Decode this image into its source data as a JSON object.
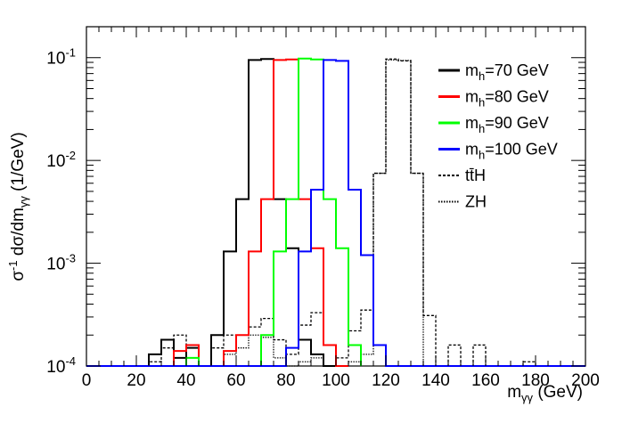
{
  "chart_data": {
    "type": "histogram-step",
    "title": "",
    "xlabel": "m",
    "xlabel_sub": "γγ",
    "xlabel_unit": " (GeV)",
    "ylabel_parts": {
      "sigma": "σ",
      "exp": "-1",
      "mid": " dσ/dm",
      "sub": "γγ",
      "unit": " (1/GeV)"
    },
    "xlim": [
      0,
      200
    ],
    "ylim": [
      0.0001,
      0.2
    ],
    "yscale": "log",
    "bin_width": 5,
    "x_ticks": [
      "0",
      "20",
      "40",
      "60",
      "80",
      "100",
      "120",
      "140",
      "160",
      "180",
      "200"
    ],
    "x_tick_values": [
      0,
      20,
      40,
      60,
      80,
      100,
      120,
      140,
      160,
      180,
      200
    ],
    "y_ticks": [
      {
        "value": 0.1,
        "base": "10",
        "exp": "-1"
      },
      {
        "value": 0.01,
        "base": "10",
        "exp": "-2"
      },
      {
        "value": 0.001,
        "base": "10",
        "exp": "-3"
      },
      {
        "value": 0.0001,
        "base": "10",
        "exp": "-4"
      }
    ],
    "series": [
      {
        "name": "mh70",
        "label_main": "m",
        "label_sub": "h",
        "label_rest": "=70 GeV",
        "color": "#000000",
        "style": "solid",
        "bins": [
          [
            20,
            25,
            0.0001
          ],
          [
            25,
            30,
            0.00013
          ],
          [
            30,
            35,
            0.00018
          ],
          [
            35,
            40,
            0.00012
          ],
          [
            40,
            45,
            0.00015
          ],
          [
            45,
            50,
            0.0001
          ],
          [
            50,
            55,
            0.0002
          ],
          [
            55,
            60,
            0.0013
          ],
          [
            60,
            65,
            0.0042
          ],
          [
            65,
            70,
            0.095
          ],
          [
            70,
            75,
            0.097
          ],
          [
            75,
            80,
            0.0042
          ],
          [
            80,
            85,
            0.0014
          ],
          [
            85,
            90,
            0.00018
          ],
          [
            90,
            95,
            0.00013
          ],
          [
            95,
            100,
            0.0001
          ]
        ]
      },
      {
        "name": "mh80",
        "label_main": "m",
        "label_sub": "h",
        "label_rest": "=80 GeV",
        "color": "#ff0000",
        "style": "solid",
        "bins": [
          [
            35,
            40,
            0.00014
          ],
          [
            40,
            45,
            0.00016
          ],
          [
            45,
            50,
            0.0001
          ],
          [
            50,
            55,
            0.0001
          ],
          [
            55,
            60,
            0.00014
          ],
          [
            60,
            65,
            0.0002
          ],
          [
            65,
            70,
            0.0013
          ],
          [
            70,
            75,
            0.0042
          ],
          [
            75,
            80,
            0.095
          ],
          [
            80,
            85,
            0.096
          ],
          [
            85,
            90,
            0.0042
          ],
          [
            90,
            95,
            0.0014
          ],
          [
            95,
            100,
            0.00016
          ],
          [
            100,
            105,
            0.0001
          ]
        ]
      },
      {
        "name": "mh90",
        "label_main": "m",
        "label_sub": "h",
        "label_rest": "=90 GeV",
        "color": "#00ff00",
        "style": "solid",
        "bins": [
          [
            35,
            40,
            0.0001
          ],
          [
            40,
            45,
            0.00012
          ],
          [
            45,
            50,
            0.0001
          ],
          [
            70,
            75,
            0.0002
          ],
          [
            75,
            80,
            0.0013
          ],
          [
            80,
            85,
            0.0042
          ],
          [
            85,
            90,
            0.098
          ],
          [
            90,
            95,
            0.096
          ],
          [
            95,
            100,
            0.0042
          ],
          [
            100,
            105,
            0.0014
          ],
          [
            105,
            110,
            0.00016
          ]
        ]
      },
      {
        "name": "mh100",
        "label_main": "m",
        "label_sub": "h",
        "label_rest": "=100 GeV",
        "color": "#0000ff",
        "style": "solid",
        "bins": [
          [
            0,
            5,
            0.0001
          ],
          [
            5,
            10,
            0.0001
          ],
          [
            10,
            15,
            0.0001
          ],
          [
            15,
            20,
            0.0001
          ],
          [
            20,
            25,
            0.0001
          ],
          [
            25,
            30,
            0.0001
          ],
          [
            30,
            35,
            0.0001
          ],
          [
            35,
            40,
            0.0001
          ],
          [
            40,
            45,
            0.0001
          ],
          [
            45,
            50,
            0.0001
          ],
          [
            50,
            55,
            0.0001
          ],
          [
            55,
            60,
            0.0001
          ],
          [
            60,
            65,
            0.0001
          ],
          [
            65,
            70,
            0.0001
          ],
          [
            70,
            75,
            0.0001
          ],
          [
            75,
            80,
            0.0001
          ],
          [
            80,
            85,
            0.00015
          ],
          [
            85,
            90,
            0.0013
          ],
          [
            90,
            95,
            0.0052
          ],
          [
            95,
            100,
            0.095
          ],
          [
            100,
            105,
            0.093
          ],
          [
            105,
            110,
            0.0052
          ],
          [
            110,
            115,
            0.0012
          ],
          [
            115,
            120,
            0.00016
          ],
          [
            120,
            125,
            0.0001
          ],
          [
            125,
            130,
            0.0001
          ],
          [
            130,
            135,
            0.0001
          ],
          [
            135,
            140,
            0.0001
          ],
          [
            140,
            145,
            0.0001
          ],
          [
            145,
            150,
            0.0001
          ],
          [
            150,
            155,
            0.0001
          ],
          [
            155,
            160,
            0.0001
          ],
          [
            160,
            165,
            0.0001
          ],
          [
            165,
            170,
            0.0001
          ],
          [
            170,
            175,
            0.0001
          ],
          [
            175,
            180,
            0.0001
          ],
          [
            180,
            185,
            0.0001
          ],
          [
            185,
            190,
            0.0001
          ],
          [
            190,
            195,
            0.0001
          ],
          [
            195,
            200,
            0.0001
          ]
        ]
      },
      {
        "name": "ttH",
        "label_main": "tt̄H",
        "label_sub": "",
        "label_rest": "",
        "color": "#000000",
        "style": "dashed",
        "bins": [
          [
            20,
            25,
            0.0001
          ],
          [
            25,
            30,
            0.00011
          ],
          [
            30,
            35,
            0.00015
          ],
          [
            35,
            40,
            0.0002
          ],
          [
            40,
            45,
            0.00012
          ],
          [
            45,
            50,
            0.0001
          ],
          [
            50,
            55,
            0.00015
          ],
          [
            55,
            60,
            0.0002
          ],
          [
            60,
            65,
            0.0002
          ],
          [
            65,
            70,
            0.00024
          ],
          [
            70,
            75,
            0.00029
          ],
          [
            75,
            80,
            0.00018
          ],
          [
            80,
            85,
            0.00013
          ],
          [
            85,
            90,
            0.00025
          ],
          [
            90,
            95,
            0.00033
          ],
          [
            95,
            100,
            0.00016
          ],
          [
            100,
            105,
            0.00012
          ],
          [
            105,
            110,
            0.00022
          ],
          [
            110,
            115,
            0.00035
          ],
          [
            115,
            120,
            0.0075
          ],
          [
            120,
            125,
            0.097
          ],
          [
            125,
            130,
            0.093
          ],
          [
            130,
            135,
            0.0075
          ],
          [
            135,
            140,
            0.00031
          ],
          [
            140,
            145,
            0.0001
          ],
          [
            145,
            150,
            0.00016
          ],
          [
            150,
            155,
            0.0001
          ],
          [
            155,
            160,
            0.00016
          ],
          [
            160,
            165,
            0.0001
          ],
          [
            175,
            180,
            0.00011
          ],
          [
            180,
            185,
            0.0001
          ]
        ]
      },
      {
        "name": "ZH",
        "label_main": "ZH",
        "label_sub": "",
        "label_rest": "",
        "color": "#000000",
        "style": "dotted",
        "bins": [
          [
            40,
            45,
            0.0001
          ],
          [
            45,
            50,
            0.0001
          ],
          [
            50,
            55,
            0.0001
          ],
          [
            55,
            60,
            0.00013
          ],
          [
            60,
            65,
            0.00015
          ],
          [
            65,
            70,
            0.0002
          ],
          [
            70,
            75,
            0.00019
          ],
          [
            75,
            80,
            0.00012
          ],
          [
            80,
            85,
            0.0001
          ],
          [
            85,
            90,
            0.00011
          ],
          [
            90,
            95,
            0.00012
          ],
          [
            95,
            100,
            0.0001
          ],
          [
            100,
            105,
            0.0001
          ],
          [
            105,
            110,
            0.00011
          ],
          [
            110,
            115,
            0.00013
          ],
          [
            115,
            120,
            0.0075
          ],
          [
            120,
            125,
            0.095
          ],
          [
            125,
            130,
            0.094
          ],
          [
            130,
            135,
            0.0075
          ],
          [
            135,
            140,
            0.0001
          ]
        ]
      }
    ]
  }
}
